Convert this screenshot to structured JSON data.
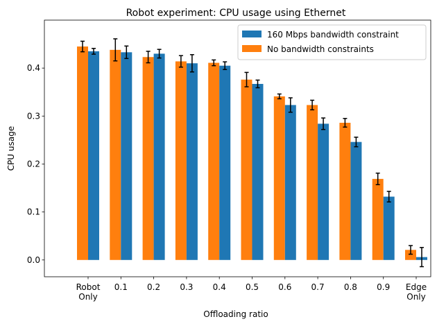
{
  "chart_data": {
    "type": "bar",
    "title": "Robot experiment: CPU usage using Ethernet",
    "xlabel": "Offloading ratio",
    "ylabel": "CPU usage",
    "ylim": [
      -0.035,
      0.5
    ],
    "yticks": [
      "0.0",
      "0.1",
      "0.2",
      "0.3",
      "0.4"
    ],
    "categories": [
      [
        "Robot",
        "Only"
      ],
      [
        "0.1"
      ],
      [
        "0.2"
      ],
      [
        "0.3"
      ],
      [
        "0.4"
      ],
      [
        "0.5"
      ],
      [
        "0.6"
      ],
      [
        "0.7"
      ],
      [
        "0.8"
      ],
      [
        "0.9"
      ],
      [
        "Edge",
        "Only"
      ]
    ],
    "legend_position": "top-right",
    "grid": false,
    "series": [
      {
        "name": "No bandwidth constraints",
        "color": "#ff7f0e",
        "values": [
          0.445,
          0.438,
          0.423,
          0.414,
          0.411,
          0.376,
          0.341,
          0.323,
          0.286,
          0.169,
          0.021
        ],
        "errors": [
          0.011,
          0.023,
          0.012,
          0.012,
          0.006,
          0.015,
          0.005,
          0.01,
          0.009,
          0.012,
          0.009
        ]
      },
      {
        "name": "160 Mbps bandwidth constraint",
        "color": "#1f77b4",
        "values": [
          0.435,
          0.433,
          0.43,
          0.41,
          0.405,
          0.367,
          0.323,
          0.284,
          0.246,
          0.132,
          0.006
        ],
        "errors": [
          0.006,
          0.013,
          0.009,
          0.018,
          0.008,
          0.008,
          0.015,
          0.012,
          0.01,
          0.011,
          0.02
        ]
      }
    ],
    "legend_order": [
      1,
      0
    ]
  }
}
